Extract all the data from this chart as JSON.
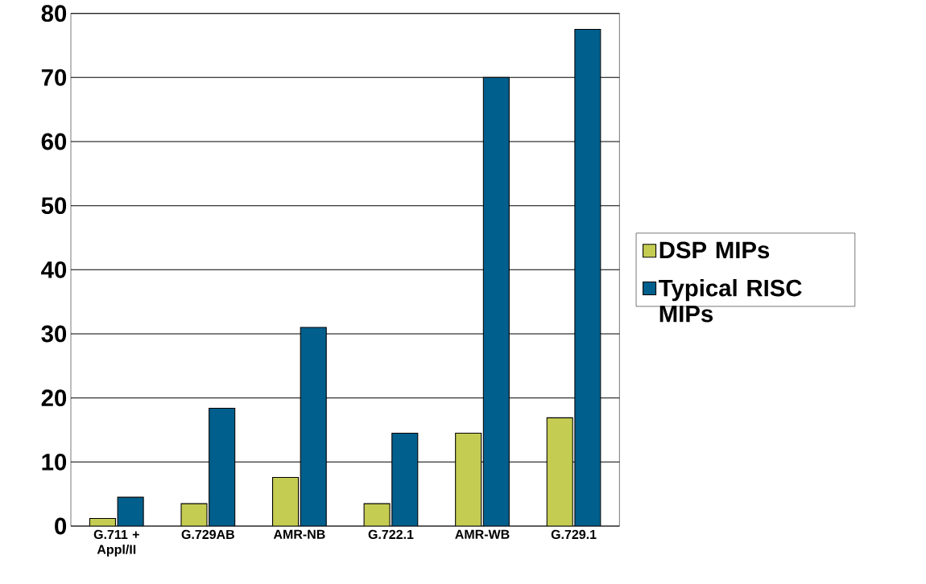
{
  "chart_data": {
    "type": "bar",
    "categories": [
      "G.711 + Appl/II",
      "G.729AB",
      "AMR-NB",
      "G.722.1",
      "AMR-WB",
      "G.729.1"
    ],
    "series": [
      {
        "name": "DSP MIPs",
        "color": "#c5cc52",
        "values": [
          1.2,
          3.5,
          7.6,
          3.5,
          14.5,
          16.9
        ]
      },
      {
        "name": "Typical RISC MIPs",
        "color": "#005f8c",
        "values": [
          4.5,
          18.4,
          31.0,
          14.5,
          70.0,
          77.5
        ]
      }
    ],
    "ylim": [
      0,
      80
    ],
    "yticks": [
      0,
      10,
      20,
      30,
      40,
      50,
      60,
      70,
      80
    ],
    "grid": "y",
    "legend": "right"
  }
}
